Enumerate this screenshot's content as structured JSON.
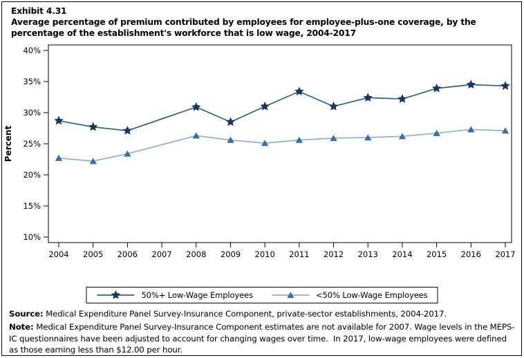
{
  "header": {
    "exhibit_number": "Exhibit 4.31",
    "title": "Average percentage of premium contributed by employees for employee-plus-one coverage, by the percentage of the establishment's workforce that is low wage, 2004-2017"
  },
  "chart_data": {
    "type": "line",
    "ylabel": "Percent",
    "categories": [
      "2004",
      "2005",
      "2006",
      "2007",
      "2008",
      "2009",
      "2010",
      "2011",
      "2012",
      "2013",
      "2014",
      "2015",
      "2016",
      "2017"
    ],
    "yticks": [
      10,
      15,
      20,
      25,
      30,
      35,
      40
    ],
    "ytick_suffix": "%",
    "ylim": [
      9.1,
      40.9
    ],
    "grid": false,
    "legend_position": "bottom-center",
    "missing_years": [
      "2007"
    ],
    "series": [
      {
        "name": "50%+ Low-Wage Employees",
        "marker": "star",
        "marker_color": "#17375E",
        "line_color": "#2B5F8E",
        "values": [
          28.7,
          27.7,
          27.1,
          null,
          30.9,
          28.5,
          31.0,
          33.4,
          31.0,
          32.4,
          32.2,
          33.9,
          34.5,
          34.3
        ]
      },
      {
        "name": "<50% Low-Wage Employees",
        "marker": "triangle",
        "marker_color": "#3A6FA5",
        "line_color": "#8FAFD2",
        "values": [
          22.7,
          22.2,
          23.4,
          null,
          26.3,
          25.6,
          25.1,
          25.6,
          25.9,
          26.0,
          26.2,
          26.7,
          27.3,
          27.1
        ]
      }
    ]
  },
  "footer": {
    "source_label": "Source:",
    "source_text": " Medical Expenditure Panel Survey-Insurance Component, private-sector establishments, 2004-2017.",
    "note_label": "Note:",
    "note_text": " Medical Expenditure Panel Survey-Insurance Component estimates are not available for 2007. Wage levels in the MEPS-IC questionnaires have been adjusted to account for changing wages over time.  In 2017, low-wage employees were defined as those earning less than $12.00 per hour."
  }
}
